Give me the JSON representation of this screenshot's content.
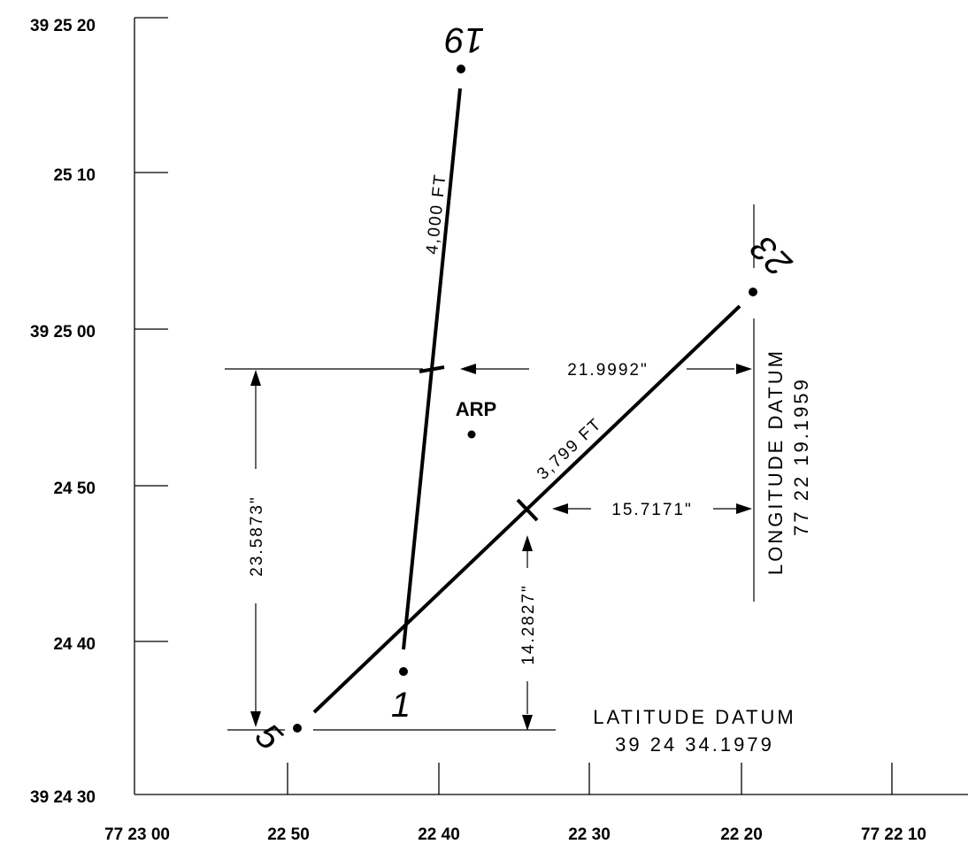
{
  "y_axis_labels": [
    "39 25 20",
    "25 10",
    "39 25 00",
    "24 50",
    "24 40",
    "39 24 30"
  ],
  "x_axis_labels": [
    "77 23 00",
    "22 50",
    "22 40",
    "22 30",
    "22 20",
    "77 22 10"
  ],
  "runway_19_1": {
    "end_a": "19",
    "end_b": "1",
    "length": "4,000 FT"
  },
  "runway_5_23": {
    "end_a": "5",
    "end_b": "23",
    "length": "3,799 FT"
  },
  "arp": {
    "label": "ARP"
  },
  "dimensions": {
    "top_horizontal": "21.9992\"",
    "left_vertical": "23.5873\"",
    "mid_horizontal": "15.7171\"",
    "mid_vertical": "14.2827\""
  },
  "latitude_datum": {
    "title": "LATITUDE DATUM",
    "value": "39 24 34.1979"
  },
  "longitude_datum": {
    "title": "LONGITUDE DATUM",
    "value": "77 22 19.1959"
  }
}
